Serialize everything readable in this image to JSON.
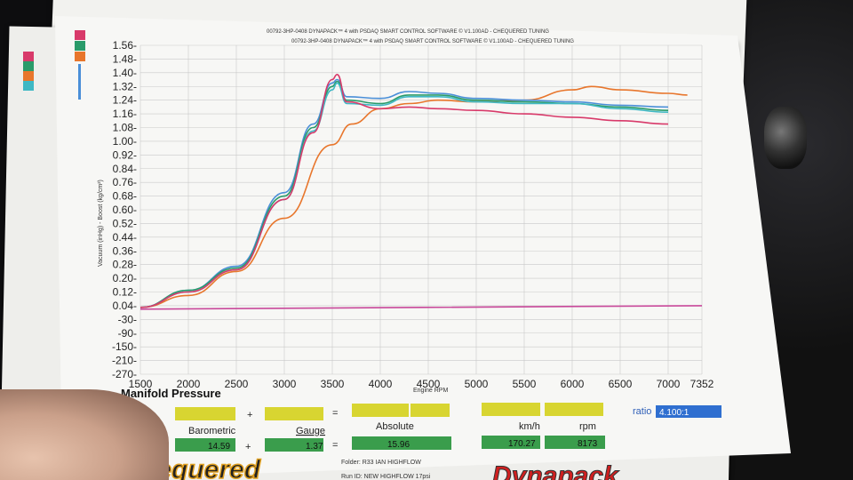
{
  "header_lines": [
    "00792-3HP-0408 DYNAPACK™ 4 with PSDAQ SMART CONTROL SOFTWARE © V1.100AD - CHEQUERED TUNING",
    "00792-3HP-0408 DYNAPACK™ 4 with PSDAQ SMART CONTROL SOFTWARE © V1.100AD - CHEQUERED TUNING"
  ],
  "chart_data": {
    "type": "line",
    "title": "Manifold Pressure",
    "xlabel": "Engine RPM",
    "ylabel": "Vacuum (inHg) - Boost (kg/cm²)",
    "x_ticks": [
      "1500",
      "2000",
      "2500",
      "3000",
      "3500",
      "4000",
      "4500",
      "5000",
      "5500",
      "6000",
      "6500",
      "7000",
      "7352"
    ],
    "y_ticks": [
      "1.56",
      "1.48",
      "1.40",
      "1.32",
      "1.24",
      "1.16",
      "1.08",
      "1.00",
      "0.92",
      "0.84",
      "0.76",
      "0.68",
      "0.60",
      "0.52",
      "0.44",
      "0.36",
      "0.28",
      "0.20",
      "0.12",
      "0.04",
      "-30",
      "-90",
      "-150",
      "-210",
      "-270"
    ],
    "grid": true,
    "series": [
      {
        "color": "#e8762c",
        "x": [
          1500,
          2000,
          2500,
          3000,
          3500,
          3700,
          4000,
          4300,
          4600,
          5000,
          5500,
          6000,
          6200,
          6500,
          7000,
          7200
        ],
        "y": [
          0.03,
          0.1,
          0.24,
          0.55,
          0.98,
          1.1,
          1.19,
          1.22,
          1.24,
          1.23,
          1.24,
          1.3,
          1.32,
          1.3,
          1.28,
          1.27
        ]
      },
      {
        "color": "#4a8fd8",
        "x": [
          1500,
          2000,
          2500,
          3000,
          3300,
          3500,
          3550,
          3650,
          4000,
          4300,
          4600,
          5000,
          5500,
          6000,
          6500,
          7000
        ],
        "y": [
          0.03,
          0.13,
          0.27,
          0.7,
          1.1,
          1.34,
          1.36,
          1.26,
          1.25,
          1.29,
          1.28,
          1.25,
          1.24,
          1.23,
          1.21,
          1.2
        ]
      },
      {
        "color": "#2a9b6a",
        "x": [
          1500,
          2000,
          2500,
          3000,
          3300,
          3500,
          3550,
          3650,
          4000,
          4300,
          4600,
          5000,
          5500,
          6000,
          6500,
          7000
        ],
        "y": [
          0.03,
          0.13,
          0.26,
          0.68,
          1.08,
          1.32,
          1.35,
          1.24,
          1.22,
          1.27,
          1.27,
          1.24,
          1.23,
          1.22,
          1.2,
          1.18
        ]
      },
      {
        "color": "#3fb8c4",
        "x": [
          1500,
          2000,
          2500,
          3000,
          3300,
          3500,
          3550,
          3650,
          4000,
          4300,
          4600,
          5000,
          5500,
          6000,
          6500,
          7000
        ],
        "y": [
          0.03,
          0.12,
          0.25,
          0.66,
          1.06,
          1.3,
          1.34,
          1.22,
          1.21,
          1.26,
          1.26,
          1.23,
          1.22,
          1.22,
          1.19,
          1.17
        ]
      },
      {
        "color": "#d83a6a",
        "x": [
          1500,
          2000,
          2500,
          3000,
          3300,
          3500,
          3550,
          3650,
          4000,
          4300,
          4600,
          5000,
          5500,
          6000,
          6500,
          7000
        ],
        "y": [
          0.03,
          0.12,
          0.25,
          0.66,
          1.05,
          1.36,
          1.39,
          1.23,
          1.19,
          1.2,
          1.19,
          1.18,
          1.16,
          1.14,
          1.12,
          1.1
        ]
      },
      {
        "color": "#c8489a",
        "x": [
          1500,
          7352
        ],
        "y": [
          0.02,
          0.04
        ]
      }
    ]
  },
  "readout": {
    "barometric_label": "Barometric",
    "barometric_value": "14.59",
    "gauge_label": "Gauge",
    "gauge_value": "1.37",
    "absolute_label": "Absolute",
    "absolute_value": "15.96",
    "kmh_label": "km/h",
    "kmh_value": "170.27",
    "rpm_label": "rpm",
    "rpm_value": "8173",
    "ratio_label": "ratio",
    "ratio_value": "4.100:1",
    "plus": "+",
    "equals": "="
  },
  "info": {
    "folder": "Folder: R33 IAN HIGHFLOW",
    "run_id": "Run ID: NEW HIGHFLOW 17psi"
  },
  "logos": {
    "left": "hequered",
    "right": "Dynapack"
  },
  "colors": {
    "yellow_box": "#d8d531",
    "green_box": "#3a9d4c",
    "ratio_box": "#2f6fd0",
    "paper": "#f7f7f5"
  }
}
